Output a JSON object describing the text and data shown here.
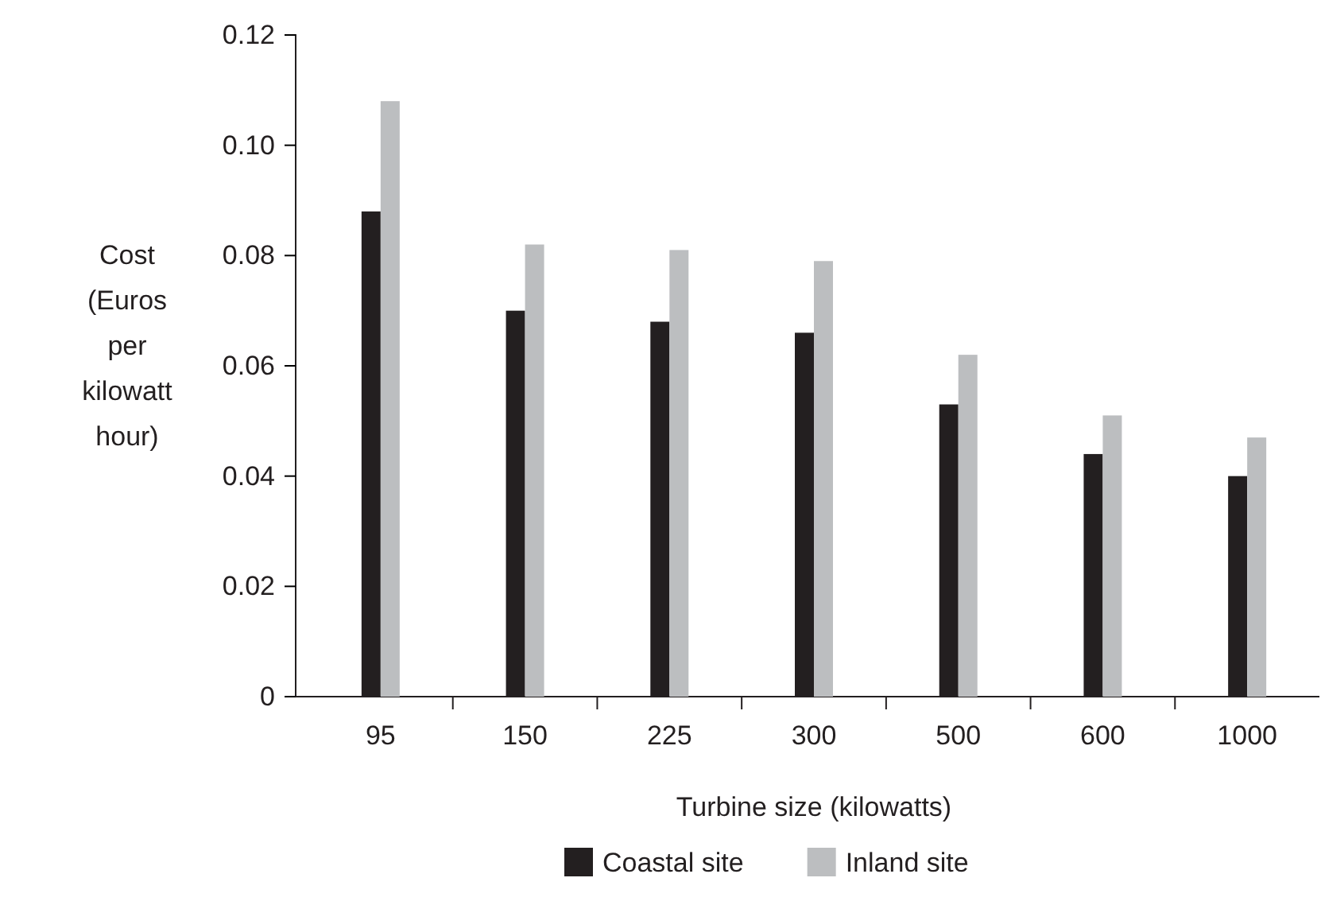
{
  "chart_data": {
    "type": "bar",
    "xlabel": "Turbine size (kilowatts)",
    "ylabel": "Cost (Euros per kilowatt hour)",
    "categories": [
      "95",
      "150",
      "225",
      "300",
      "500",
      "600",
      "1000"
    ],
    "series": [
      {
        "name": "Coastal site",
        "color": "#231f20",
        "values": [
          0.088,
          0.07,
          0.068,
          0.066,
          0.053,
          0.044,
          0.04
        ]
      },
      {
        "name": "Inland site",
        "color": "#bcbec0",
        "values": [
          0.108,
          0.082,
          0.081,
          0.079,
          0.062,
          0.051,
          0.047
        ]
      }
    ],
    "ylim": [
      0,
      0.12
    ],
    "yticks": [
      0,
      {
        "value": 0.02,
        "label": "0.02"
      },
      {
        "value": 0.04,
        "label": "0.04"
      },
      {
        "value": 0.06,
        "label": "0.06"
      },
      {
        "value": 0.08,
        "label": "0.08"
      },
      {
        "value": 0.1,
        "label": "0.10"
      },
      {
        "value": 0.12,
        "label": "0.12"
      }
    ],
    "legend": "bottom",
    "grid": false
  }
}
